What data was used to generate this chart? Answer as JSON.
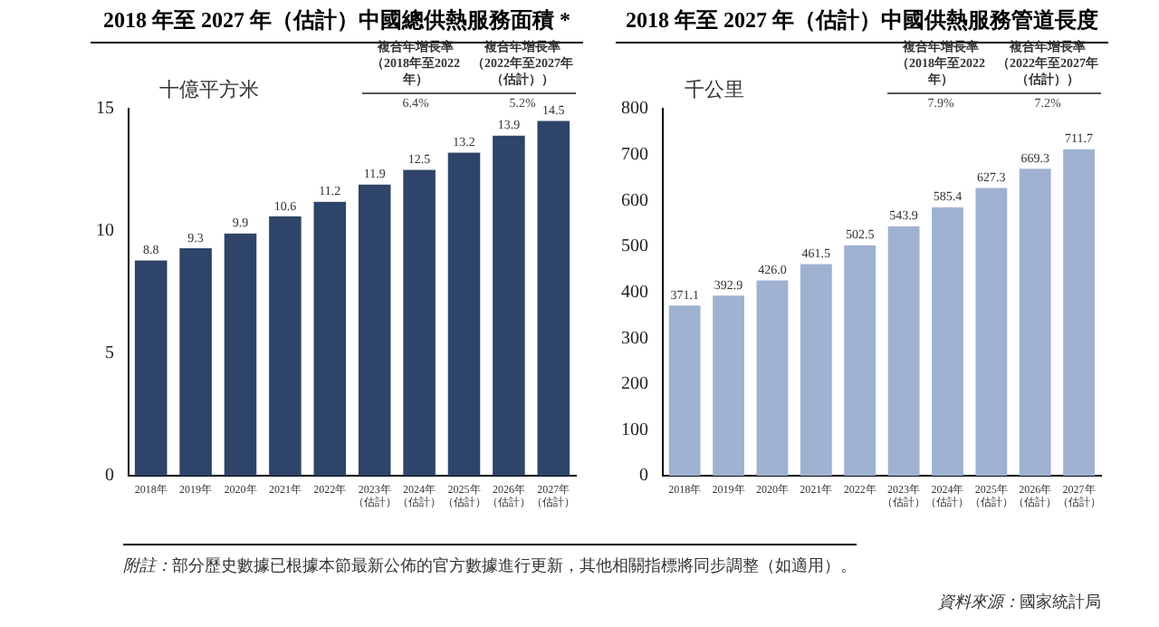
{
  "chart_data": [
    {
      "type": "bar",
      "title": "2018 年至 2027 年（估計）中國總供熱服務面積 *",
      "ylabel": "十億平方米",
      "categories": [
        "2018年",
        "2019年",
        "2020年",
        "2021年",
        "2022年",
        "2023年（估計）",
        "2024年（估計）",
        "2025年（估計）",
        "2026年（估計）",
        "2027年（估計）"
      ],
      "values": [
        8.8,
        9.3,
        9.9,
        10.6,
        11.2,
        11.9,
        12.5,
        13.2,
        13.9,
        14.5
      ],
      "color": "#2e4468",
      "ylim": [
        0,
        15
      ],
      "yticks": [
        0,
        5,
        10,
        15
      ],
      "grid": false,
      "legend": false,
      "data_labels": true,
      "annotations": [
        "複合年增長率（2018年至2022年）",
        "6.4%",
        "複合年增長率（2022年至2027年（估計））",
        "5.2%"
      ]
    },
    {
      "type": "bar",
      "title": "2018 年至 2027 年（估計）中國供熱服務管道長度",
      "ylabel": "千公里",
      "categories": [
        "2018年",
        "2019年",
        "2020年",
        "2021年",
        "2022年",
        "2023年（估計）",
        "2024年（估計）",
        "2025年（估計）",
        "2026年（估計）",
        "2027年（估計）"
      ],
      "values": [
        371.1,
        392.9,
        426.0,
        461.5,
        502.5,
        543.9,
        585.4,
        627.3,
        669.3,
        711.7
      ],
      "color": "#9fb1d1",
      "ylim": [
        0,
        800
      ],
      "yticks": [
        0,
        100,
        200,
        300,
        400,
        500,
        600,
        700,
        800
      ],
      "grid": false,
      "legend": false,
      "value_labels": [
        "371.1",
        "392.9",
        "426.0",
        "461.5",
        "502.5",
        "543.9",
        "585.4",
        "627.3",
        "669.3",
        "711.7"
      ],
      "annotations": [
        "複合年增長率（2018年至2022年）",
        "7.9%",
        "複合年增長率（2022年至2027年（估計））",
        "7.2%"
      ]
    },
    {
      "type": "other",
      "annotations": [
        "附註：部分歷史數據已根據本節最新公佈的官方數據進行更新，其他相關指標將同步調整（如適用）。",
        "資料來源：國家統計局"
      ]
    }
  ]
}
